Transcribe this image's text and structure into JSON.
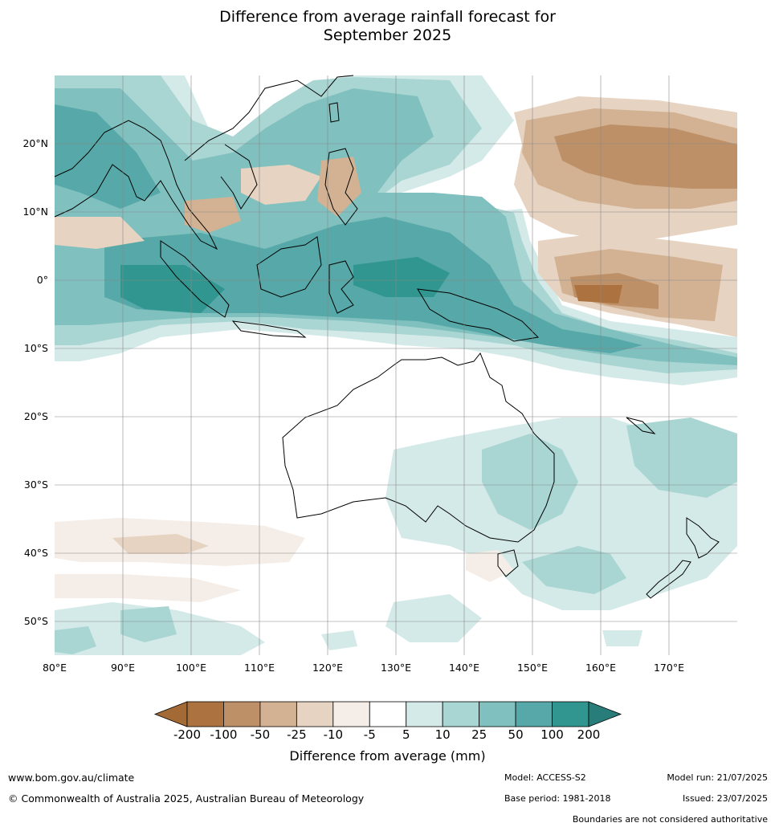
{
  "title_line1": "Difference from average rainfall forecast for",
  "title_line2": "September 2025",
  "lat_labels": [
    "20°N",
    "10°N",
    "0°",
    "10°S",
    "20°S",
    "30°S",
    "40°S",
    "50°S"
  ],
  "lon_labels": [
    "80°E",
    "90°E",
    "100°E",
    "110°E",
    "120°E",
    "130°E",
    "140°E",
    "150°E",
    "160°E",
    "170°E"
  ],
  "legend": {
    "title": "Difference from average (mm)",
    "ticks": [
      "-200",
      "-100",
      "-50",
      "-25",
      "-10",
      "-5",
      "5",
      "10",
      "25",
      "50",
      "100",
      "200"
    ],
    "colors": [
      "#a46a36",
      "#ac7340",
      "#be9068",
      "#d2b293",
      "#e6d3c1",
      "#f5ede7",
      "#ffffff",
      "#d4eae8",
      "#a9d5d3",
      "#80c0bf",
      "#56a9a8",
      "#30968f",
      "#287d7a"
    ]
  },
  "footer": {
    "url": "www.bom.gov.au/climate",
    "copyright": "© Commonwealth of Australia 2025, Australian Bureau of Meteorology",
    "model": "Model: ACCESS-S2",
    "base_period": "Base period: 1981-2018",
    "model_run": "Model run: 21/07/2025",
    "issued": "Issued: 23/07/2025",
    "disclaimer": "Boundaries are not considered authoritative"
  }
}
